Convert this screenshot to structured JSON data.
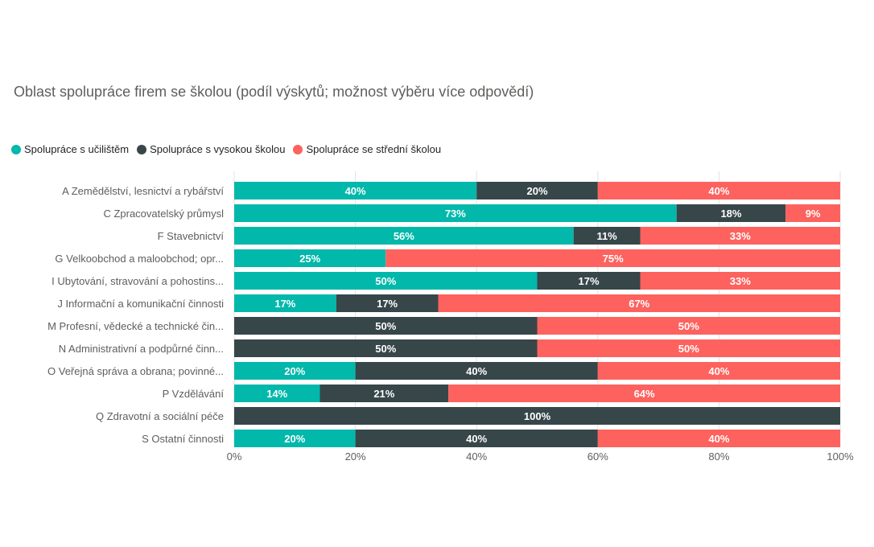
{
  "chart_data": {
    "type": "bar",
    "orientation": "horizontal",
    "stacked": "100%",
    "title": "Oblast spolupráce firem se školou (podíl výskytů; možnost výběru více odpovědí)",
    "legend_position": "top-left",
    "grid": true,
    "xlim": [
      0,
      100
    ],
    "x_ticks": [
      "0%",
      "20%",
      "40%",
      "60%",
      "80%",
      "100%"
    ],
    "categories": [
      "A Zemědělství, lesnictví a rybářství",
      "C Zpracovatelský průmysl",
      "F Stavebnictví",
      "G Velkoobchod a maloobchod; opr...",
      "I Ubytování, stravování a pohostins...",
      "J Informační a komunikační činnosti",
      "M Profesní, vědecké a technické čin...",
      "N Administrativní a podpůrné činn...",
      "O Veřejná správa a obrana; povinné...",
      "P Vzdělávání",
      "Q Zdravotní a sociální péče",
      "S Ostatní činnosti"
    ],
    "series": [
      {
        "name": "Spolupráce s učilištěm",
        "color": "#01b8aa",
        "values": [
          40,
          73,
          56,
          25,
          50,
          17,
          0,
          0,
          20,
          14,
          0,
          20
        ],
        "labels": [
          "40%",
          "73%",
          "56%",
          "25%",
          "50%",
          "17%",
          "",
          "",
          "20%",
          "14%",
          "",
          "20%"
        ]
      },
      {
        "name": "Spolupráce s vysokou školou",
        "color": "#374649",
        "values": [
          20,
          18,
          11,
          0,
          17,
          17,
          50,
          50,
          40,
          21,
          100,
          40
        ],
        "labels": [
          "20%",
          "18%",
          "11%",
          "",
          "17%",
          "17%",
          "50%",
          "50%",
          "40%",
          "21%",
          "100%",
          "40%"
        ]
      },
      {
        "name": "Spolupráce se střední školou",
        "color": "#fd625e",
        "values": [
          40,
          9,
          33,
          75,
          33,
          67,
          50,
          50,
          40,
          64,
          0,
          40
        ],
        "labels": [
          "40%",
          "9%",
          "33%",
          "75%",
          "33%",
          "67%",
          "50%",
          "50%",
          "40%",
          "64%",
          "",
          "40%"
        ]
      }
    ]
  }
}
